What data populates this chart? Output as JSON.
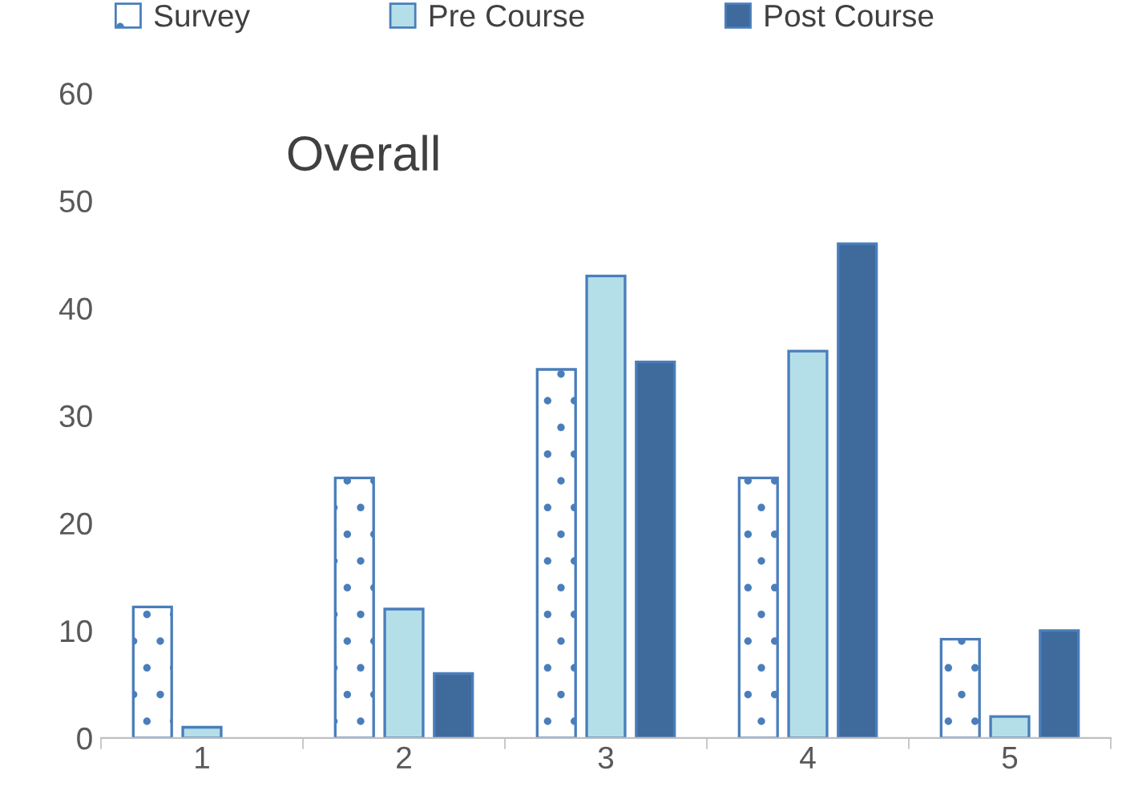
{
  "chart_data": {
    "type": "bar",
    "title": "Overall",
    "categories": [
      "1",
      "2",
      "3",
      "4",
      "5"
    ],
    "series": [
      {
        "name": "Survey",
        "color": "#4a7ebb",
        "values": [
          12.2,
          24.2,
          34.3,
          24.2,
          9.2
        ]
      },
      {
        "name": "Pre Course",
        "color": "#b4dfe8",
        "values": [
          1,
          12,
          43,
          36,
          2
        ]
      },
      {
        "name": "Post Course",
        "color": "#3e6a9c",
        "values": [
          null,
          6,
          35,
          46,
          10
        ]
      }
    ],
    "ylim": [
      0,
      60
    ],
    "yticks": [
      0,
      10,
      20,
      30,
      40,
      50,
      60
    ],
    "grid": false,
    "legend": "top"
  }
}
